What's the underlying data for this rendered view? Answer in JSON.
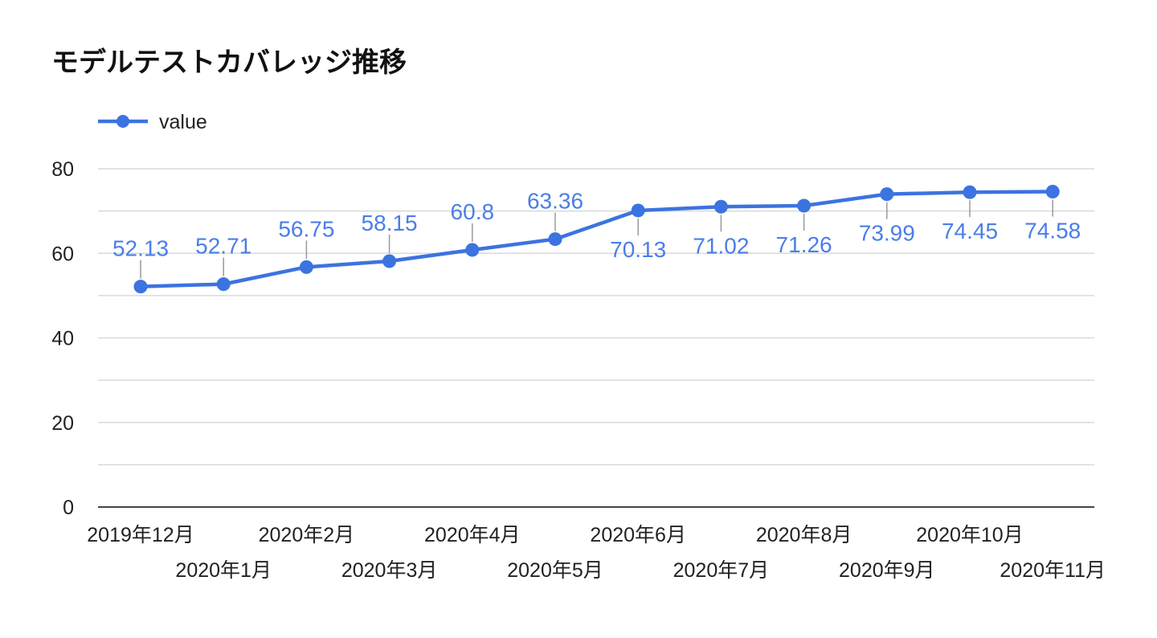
{
  "chart_data": {
    "type": "line",
    "title": "モデルテストカバレッジ推移",
    "xlabel": "",
    "ylabel": "",
    "categories": [
      "2019年12月",
      "2020年1月",
      "2020年2月",
      "2020年3月",
      "2020年4月",
      "2020年5月",
      "2020年6月",
      "2020年7月",
      "2020年8月",
      "2020年9月",
      "2020年10月",
      "2020年11月"
    ],
    "series": [
      {
        "name": "value",
        "values": [
          52.13,
          52.71,
          56.75,
          58.15,
          60.8,
          63.36,
          70.13,
          71.02,
          71.26,
          73.99,
          74.45,
          74.58
        ],
        "data_labels": [
          "52.13",
          "52.71",
          "56.75",
          "58.15",
          "60.8",
          "63.36",
          "70.13",
          "71.02",
          "71.26",
          "73.99",
          "74.45",
          "74.58"
        ],
        "label_position": [
          "above",
          "above",
          "above",
          "above",
          "above",
          "above",
          "below",
          "below",
          "below",
          "below",
          "below",
          "below"
        ]
      }
    ],
    "ylim": [
      0,
      80
    ],
    "yticks": [
      0,
      20,
      40,
      60,
      80
    ],
    "ytick_labels": [
      "0",
      "20",
      "40",
      "60",
      "80"
    ],
    "minor_gridlines": [
      10,
      30,
      50,
      70
    ],
    "grid": true,
    "legend": "top-left",
    "colors": {
      "series": "#3b73e0",
      "data_label": "#4a7ee8",
      "gridline": "#d9d9d9",
      "axis": "#444444",
      "leader": "#9a9a9a"
    }
  }
}
